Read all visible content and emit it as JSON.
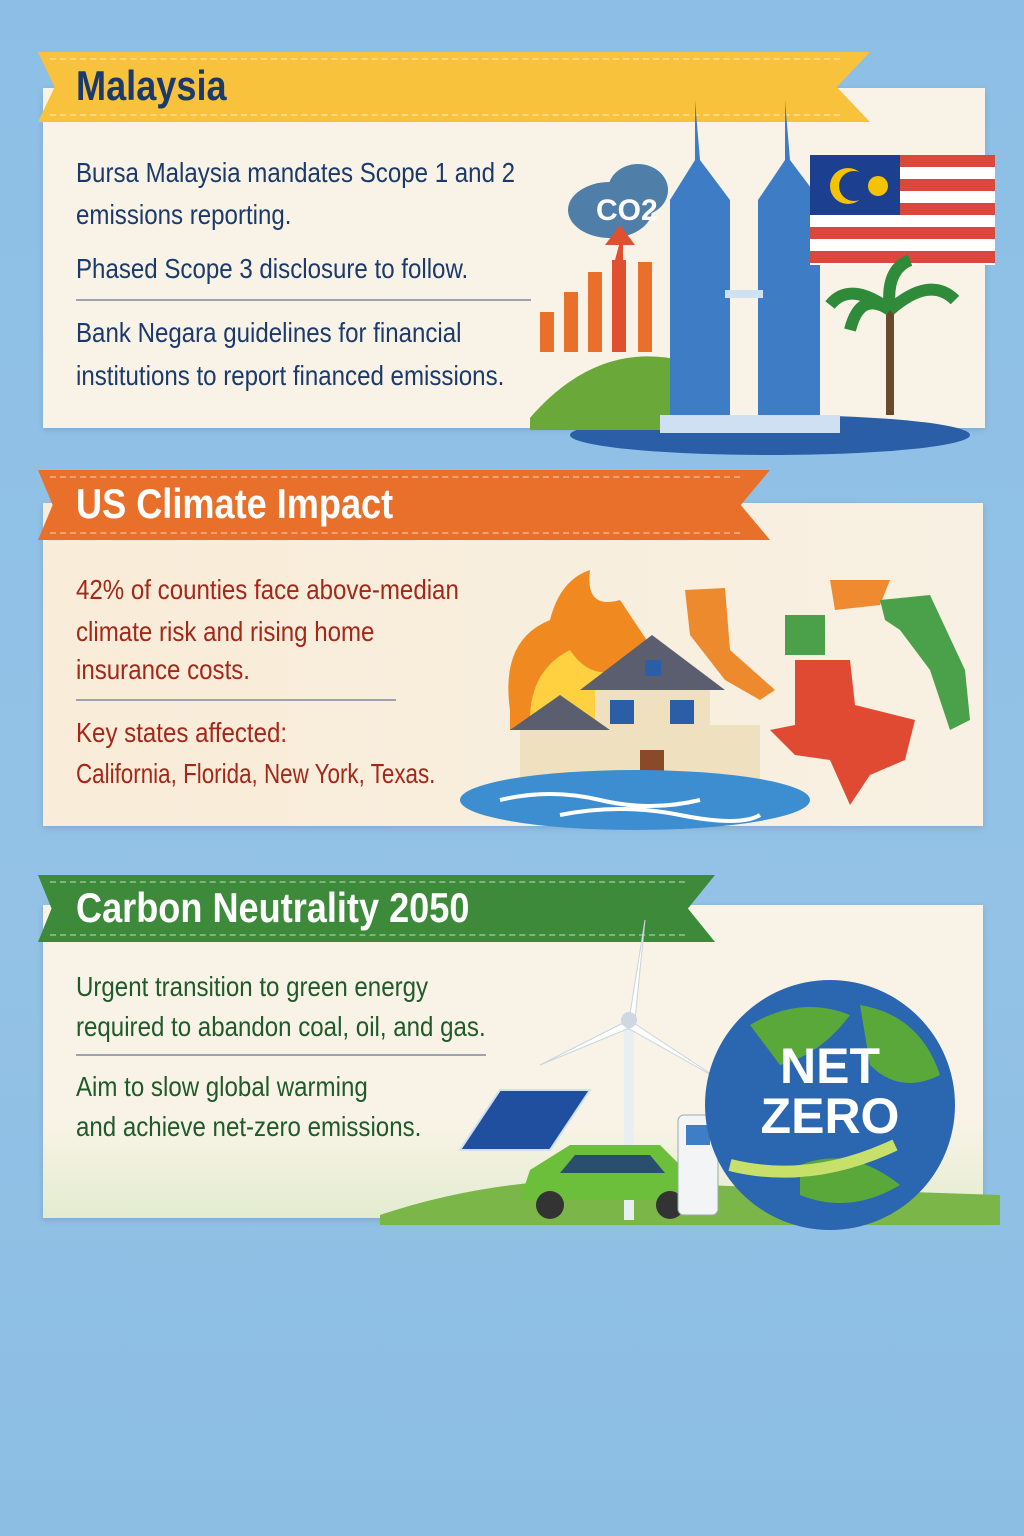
{
  "sections": [
    {
      "title": "Malaysia",
      "color": "#f9c23c",
      "text_color": "#1b3a6b",
      "lines": [
        "Bursa Malaysia mandates Scope 1 and 2",
        "emissions reporting.",
        "Phased Scope 3 disclosure to follow.",
        "Bank Negara guidelines for financial",
        "institutions to report financed emissions."
      ],
      "illustration": {
        "cloud_label": "CO2",
        "icons": [
          "co2-cloud-icon",
          "rising-bar-chart-icon",
          "petronas-towers-icon",
          "malaysia-flag-icon",
          "palm-tree-icon"
        ]
      }
    },
    {
      "title": "US Climate Impact",
      "color": "#e8702a",
      "text_color": "#a3281a",
      "lines": [
        "42% of counties face above-median",
        "climate risk and rising home",
        "insurance costs.",
        "Key states affected:",
        "California, Florida, New York, Texas."
      ],
      "illustration": {
        "icons": [
          "burning-house-icon",
          "flood-water-icon",
          "us-states-map-icon"
        ]
      }
    },
    {
      "title": "Carbon Neutrality 2050",
      "color": "#3d8a3a",
      "text_color": "#1f5a2a",
      "lines": [
        "Urgent transition to green energy",
        "required to abandon coal, oil, and gas.",
        "Aim to slow global warming",
        "and achieve net-zero emissions."
      ],
      "illustration": {
        "globe_label_1": "NET",
        "globe_label_2": "ZERO",
        "icons": [
          "wind-turbine-icon",
          "solar-panel-icon",
          "electric-car-icon",
          "charging-station-icon",
          "globe-icon"
        ]
      }
    }
  ]
}
